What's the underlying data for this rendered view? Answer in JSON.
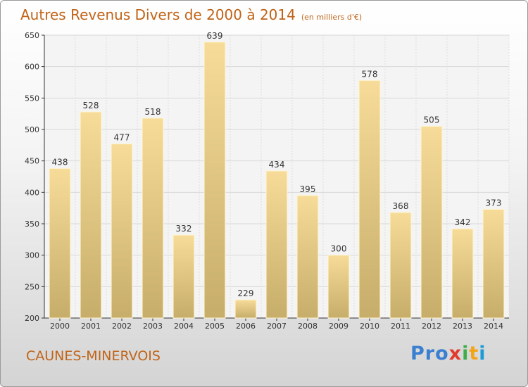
{
  "chart_data": {
    "type": "bar",
    "title": "Autres Revenus Divers de 2000 à 2014",
    "subtitle": "(en milliers d'€)",
    "categories": [
      "2000",
      "2001",
      "2002",
      "2003",
      "2004",
      "2005",
      "2006",
      "2007",
      "2008",
      "2009",
      "2010",
      "2011",
      "2012",
      "2013",
      "2014"
    ],
    "values": [
      438,
      528,
      477,
      518,
      332,
      639,
      229,
      434,
      395,
      300,
      578,
      368,
      505,
      342,
      373
    ],
    "ylim": [
      200,
      650
    ],
    "yticks": [
      200,
      250,
      300,
      350,
      400,
      450,
      500,
      550,
      600,
      650
    ],
    "grid": true,
    "bar_color": "#e8c97a"
  },
  "footer": {
    "town": "CAUNES-MINERVOIS",
    "logo": [
      "Pro",
      "x",
      "i",
      "t",
      "i"
    ]
  }
}
